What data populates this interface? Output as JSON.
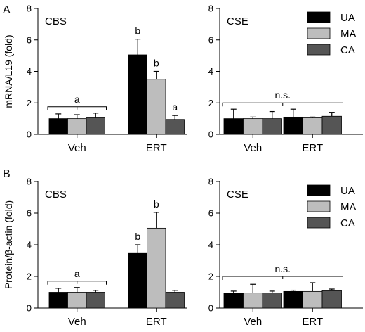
{
  "panel_letters": [
    "A",
    "B"
  ],
  "legend": [
    "UA",
    "MA",
    "CA"
  ],
  "colors": {
    "UA": "#000000",
    "MA": "#bdbdbd",
    "CA": "#555555"
  },
  "chart_data": [
    {
      "type": "bar",
      "panel": "A",
      "title": "CBS",
      "ylabel": "mRNA/L19 (fold)",
      "ylim": [
        0,
        8
      ],
      "yticks": [
        0,
        2,
        4,
        6,
        8
      ],
      "categories": [
        "Veh",
        "ERT"
      ],
      "series": [
        {
          "name": "UA",
          "values": [
            1.0,
            5.05
          ],
          "errors": [
            0.3,
            1.0
          ]
        },
        {
          "name": "MA",
          "values": [
            1.0,
            3.5
          ],
          "errors": [
            0.25,
            0.5
          ]
        },
        {
          "name": "CA",
          "values": [
            1.05,
            0.95
          ],
          "errors": [
            0.3,
            0.25
          ]
        }
      ],
      "group_annotations": [
        {
          "category": "Veh",
          "label": "a",
          "bracket": true
        }
      ],
      "bar_annotations": [
        {
          "category": "ERT",
          "labels": [
            "b",
            "b",
            "a"
          ]
        }
      ],
      "legend": false
    },
    {
      "type": "bar",
      "panel": "A",
      "title": "CSE",
      "ylabel": "",
      "ylim": [
        0,
        8
      ],
      "yticks": [
        0,
        2,
        4,
        6,
        8
      ],
      "categories": [
        "Veh",
        "ERT"
      ],
      "series": [
        {
          "name": "UA",
          "values": [
            1.0,
            1.1
          ],
          "errors": [
            0.6,
            0.5
          ]
        },
        {
          "name": "MA",
          "values": [
            1.0,
            1.05
          ],
          "errors": [
            0.1,
            0.05
          ]
        },
        {
          "name": "CA",
          "values": [
            1.0,
            1.15
          ],
          "errors": [
            0.45,
            0.25
          ]
        }
      ],
      "group_annotations": [
        {
          "category": "all",
          "label": "n.s.",
          "bracket": true
        }
      ],
      "bar_annotations": [],
      "legend": true,
      "legend_position": "top-right"
    },
    {
      "type": "bar",
      "panel": "B",
      "title": "CBS",
      "ylabel": "Protein/β-actin (fold)",
      "ylim": [
        0,
        8
      ],
      "yticks": [
        0,
        2,
        4,
        6,
        8
      ],
      "categories": [
        "Veh",
        "ERT"
      ],
      "series": [
        {
          "name": "UA",
          "values": [
            1.0,
            3.5
          ],
          "errors": [
            0.25,
            0.5
          ]
        },
        {
          "name": "MA",
          "values": [
            1.0,
            5.05
          ],
          "errors": [
            0.3,
            1.0
          ]
        },
        {
          "name": "CA",
          "values": [
            1.0,
            1.0
          ],
          "errors": [
            0.12,
            0.12
          ]
        }
      ],
      "group_annotations": [
        {
          "category": "Veh",
          "label": "a",
          "bracket": true
        }
      ],
      "bar_annotations": [
        {
          "category": "ERT",
          "labels": [
            "b",
            "b",
            ""
          ]
        }
      ],
      "legend": false
    },
    {
      "type": "bar",
      "panel": "B",
      "title": "CSE",
      "ylabel": "",
      "ylim": [
        0,
        8
      ],
      "yticks": [
        0,
        2,
        4,
        6,
        8
      ],
      "categories": [
        "Veh",
        "ERT"
      ],
      "series": [
        {
          "name": "UA",
          "values": [
            0.95,
            1.05
          ],
          "errors": [
            0.12,
            0.08
          ]
        },
        {
          "name": "MA",
          "values": [
            0.95,
            1.05
          ],
          "errors": [
            0.55,
            0.55
          ]
        },
        {
          "name": "CA",
          "values": [
            0.95,
            1.1
          ],
          "errors": [
            0.12,
            0.1
          ]
        }
      ],
      "group_annotations": [
        {
          "category": "all",
          "label": "n.s.",
          "bracket": true
        }
      ],
      "bar_annotations": [],
      "legend": true,
      "legend_position": "top-right"
    }
  ]
}
